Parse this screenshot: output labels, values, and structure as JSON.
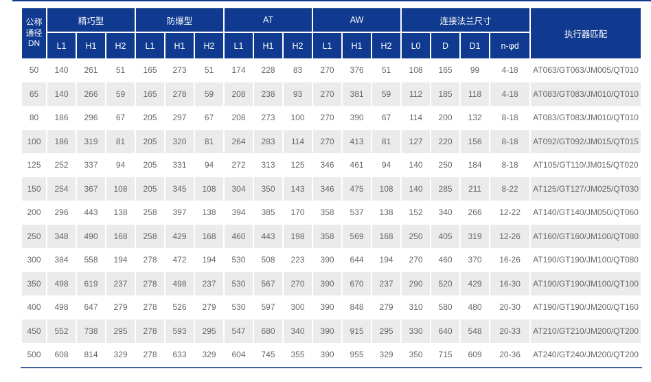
{
  "colors": {
    "header_bg": "#0f3a8f",
    "stripe_bg": "#ebebeb",
    "text": "#666666",
    "bottom_border": "#3f5fa5",
    "top_line": "#0f3a8f"
  },
  "table": {
    "header": {
      "dn_label": "公称\n通径\nDN",
      "groups": [
        {
          "label": "精巧型",
          "cols": [
            "L1",
            "H1",
            "H2"
          ]
        },
        {
          "label": "防爆型",
          "cols": [
            "L1",
            "H1",
            "H2"
          ]
        },
        {
          "label": "AT",
          "cols": [
            "L1",
            "H1",
            "H2"
          ]
        },
        {
          "label": "AW",
          "cols": [
            "L1",
            "H1",
            "H2"
          ]
        },
        {
          "label": "连接法兰尺寸",
          "cols": [
            "L0",
            "D",
            "D1",
            "n-φd"
          ]
        }
      ],
      "actuator_label": "执行器匹配"
    },
    "rows": [
      [
        "50",
        "140",
        "261",
        "51",
        "165",
        "273",
        "51",
        "174",
        "228",
        "83",
        "270",
        "376",
        "51",
        "108",
        "165",
        "99",
        "4-18",
        "AT063/GT063/JM005/QT010"
      ],
      [
        "65",
        "140",
        "266",
        "59",
        "165",
        "278",
        "59",
        "208",
        "238",
        "93",
        "270",
        "381",
        "59",
        "112",
        "185",
        "118",
        "4-18",
        "AT083/GT083/JM010/QT010"
      ],
      [
        "80",
        "186",
        "296",
        "67",
        "205",
        "297",
        "67",
        "208",
        "273",
        "100",
        "270",
        "390",
        "67",
        "114",
        "200",
        "132",
        "8-18",
        "AT083/GT083/JM010/QT010"
      ],
      [
        "100",
        "186",
        "319",
        "81",
        "205",
        "320",
        "81",
        "264",
        "283",
        "114",
        "270",
        "413",
        "81",
        "127",
        "220",
        "156",
        "8-18",
        "AT092/GT092/JM015/QT015"
      ],
      [
        "125",
        "252",
        "337",
        "94",
        "205",
        "331",
        "94",
        "272",
        "313",
        "125",
        "346",
        "461",
        "94",
        "140",
        "250",
        "184",
        "8-18",
        "AT105/GT110/JM015/QT020"
      ],
      [
        "150",
        "254",
        "367",
        "108",
        "205",
        "345",
        "108",
        "304",
        "350",
        "143",
        "346",
        "475",
        "108",
        "140",
        "285",
        "211",
        "8-22",
        "AT125/GT127/JM025/QT030"
      ],
      [
        "200",
        "296",
        "443",
        "138",
        "258",
        "397",
        "138",
        "394",
        "385",
        "170",
        "358",
        "537",
        "138",
        "152",
        "340",
        "266",
        "12-22",
        "AT140/GT140/JM050/QT060"
      ],
      [
        "250",
        "348",
        "490",
        "168",
        "258",
        "429",
        "168",
        "460",
        "443",
        "198",
        "358",
        "569",
        "168",
        "250",
        "405",
        "319",
        "12-26",
        "AT160/GT160/JM100/QT080"
      ],
      [
        "300",
        "384",
        "558",
        "194",
        "278",
        "472",
        "194",
        "530",
        "508",
        "223",
        "390",
        "644",
        "194",
        "270",
        "460",
        "370",
        "16-26",
        "AT190/GT190/JM100/QT080"
      ],
      [
        "350",
        "498",
        "619",
        "237",
        "278",
        "498",
        "237",
        "530",
        "567",
        "270",
        "390",
        "670",
        "237",
        "290",
        "520",
        "429",
        "16-30",
        "AT190/GT190/JM100/QT100"
      ],
      [
        "400",
        "498",
        "647",
        "279",
        "278",
        "526",
        "279",
        "530",
        "597",
        "300",
        "390",
        "848",
        "279",
        "310",
        "580",
        "480",
        "20-30",
        "AT190/GT190/JM200/QT160"
      ],
      [
        "450",
        "552",
        "738",
        "295",
        "278",
        "593",
        "295",
        "547",
        "680",
        "340",
        "390",
        "915",
        "295",
        "330",
        "640",
        "548",
        "20-33",
        "AT210/GT210/JM200/QT200"
      ],
      [
        "500",
        "608",
        "814",
        "329",
        "278",
        "633",
        "329",
        "604",
        "745",
        "355",
        "390",
        "955",
        "329",
        "350",
        "715",
        "609",
        "20-36",
        "AT240/GT240/JM200/QT200"
      ]
    ]
  }
}
